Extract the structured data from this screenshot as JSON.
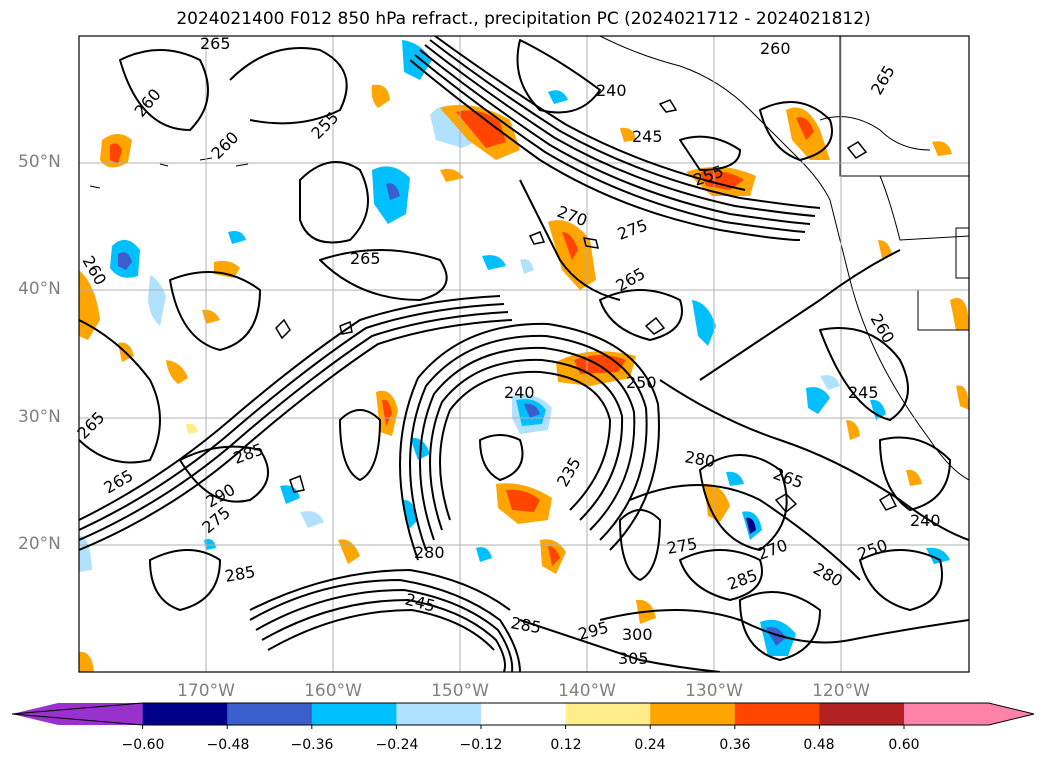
{
  "title": "2024021400 F012 850 hPa refract., precipitation PC (2024021712 - 2024021812)",
  "axes": {
    "lat_labels": [
      "50°N",
      "40°N",
      "30°N",
      "20°N"
    ],
    "lon_labels": [
      "170°W",
      "160°W",
      "150°W",
      "140°W",
      "130°W",
      "120°W"
    ]
  },
  "colorbar": {
    "ticks": [
      "−0.60",
      "−0.48",
      "−0.36",
      "−0.24",
      "−0.12",
      "0.12",
      "0.24",
      "0.36",
      "0.48",
      "0.60"
    ],
    "colors": [
      "#9932cc",
      "#00008b",
      "#3a5fcd",
      "#00bfff",
      "#b0e2ff",
      "#ffffff",
      "#ffec8b",
      "#ffa500",
      "#ff4500",
      "#b22222",
      "#ff82ab"
    ]
  },
  "contour_labels": {
    "l1": "265",
    "l2": "260",
    "l3": "260",
    "l4": "255",
    "l5": "260",
    "l6": "240",
    "l7": "245",
    "l8": "255",
    "l9": "265",
    "l10": "270",
    "l11": "275",
    "l12": "265",
    "l13": "265",
    "l14": "260",
    "l15": "245",
    "l16": "265",
    "l17": "240",
    "l18": "235",
    "l19": "250",
    "l20": "265",
    "l21": "280",
    "l22": "240",
    "l23": "285",
    "l24": "290",
    "l25": "275",
    "l26": "285",
    "l27": "280",
    "l28": "275",
    "l29": "245",
    "l30": "295",
    "l31": "300",
    "l32": "305",
    "l33": "285",
    "l34": "270",
    "l35": "280",
    "l36": "250",
    "l37": "285",
    "l38": "265",
    "l39": "260"
  }
}
